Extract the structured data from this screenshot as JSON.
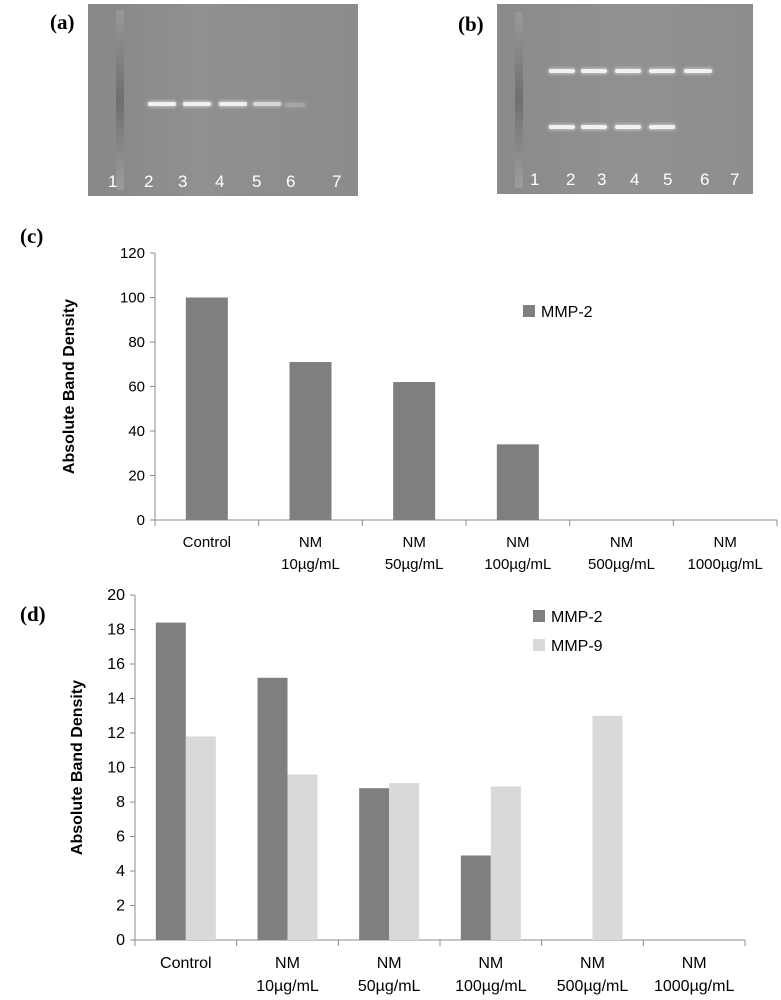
{
  "panels": {
    "a": {
      "label": "(a)",
      "lanes": [
        "1",
        "2",
        "3",
        "4",
        "5",
        "6",
        "7"
      ]
    },
    "b": {
      "label": "(b)",
      "lanes": [
        "1",
        "2",
        "3",
        "4",
        "5",
        "6",
        "7"
      ]
    },
    "c": {
      "label": "(c)"
    },
    "d": {
      "label": "(d)"
    }
  },
  "chart_data": [
    {
      "type": "bar",
      "panel": "c",
      "categories": [
        [
          "Control"
        ],
        [
          "NM",
          "10µg/mL"
        ],
        [
          "NM",
          "50µg/mL"
        ],
        [
          "NM",
          "100µg/mL"
        ],
        [
          "NM",
          "500µg/mL"
        ],
        [
          "NM",
          "1000µg/mL"
        ]
      ],
      "series": [
        {
          "name": "MMP-2",
          "color": "#7f7f7f",
          "values": [
            100,
            71,
            62,
            34,
            0,
            0
          ]
        }
      ],
      "ylabel": "Absolute Band Density",
      "ylim": [
        0,
        120
      ],
      "yticks": [
        0,
        20,
        40,
        60,
        80,
        100,
        120
      ],
      "grid": false,
      "legend": "right"
    },
    {
      "type": "bar",
      "panel": "d",
      "categories": [
        [
          "Control"
        ],
        [
          "NM",
          "10µg/mL"
        ],
        [
          "NM",
          "50µg/mL"
        ],
        [
          "NM",
          "100µg/mL"
        ],
        [
          "NM",
          "500µg/mL"
        ],
        [
          "NM",
          "1000µg/mL"
        ]
      ],
      "series": [
        {
          "name": "MMP-2",
          "color": "#7f7f7f",
          "values": [
            18.4,
            15.2,
            8.8,
            4.9,
            0,
            0
          ]
        },
        {
          "name": "MMP-9",
          "color": "#d9d9d9",
          "values": [
            11.8,
            9.6,
            9.1,
            8.9,
            13.0,
            0
          ]
        }
      ],
      "ylabel": "Absolute Band Density",
      "ylim": [
        0,
        20
      ],
      "yticks": [
        0,
        2,
        4,
        6,
        8,
        10,
        12,
        14,
        16,
        18,
        20
      ],
      "grid": false,
      "legend": "top-right"
    }
  ]
}
